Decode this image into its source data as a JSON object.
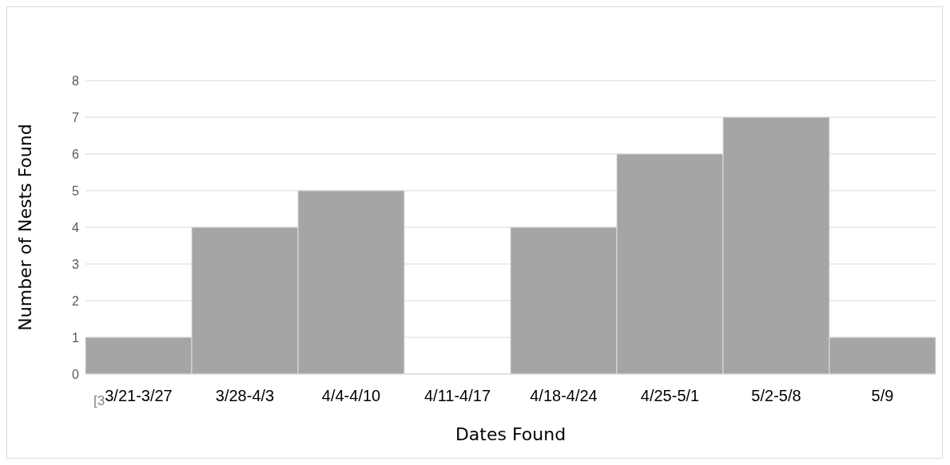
{
  "chart_data": {
    "type": "bar",
    "xlabel": "Dates Found",
    "ylabel": "Number of Nests Found",
    "categories": [
      "3/21-3/27",
      "3/28-4/3",
      "4/4-4/10",
      "4/11-4/17",
      "4/18-4/24",
      "4/25-5/1",
      "5/2-5/8",
      "5/9"
    ],
    "values": [
      1,
      4,
      5,
      0,
      4,
      6,
      7,
      1
    ],
    "color": "#a5a5a5",
    "ylim": [
      0,
      8
    ],
    "yticks": [
      0,
      1,
      2,
      3,
      4,
      5,
      6,
      7,
      8
    ],
    "grid": "y",
    "annotations": [
      "[3"
    ]
  }
}
